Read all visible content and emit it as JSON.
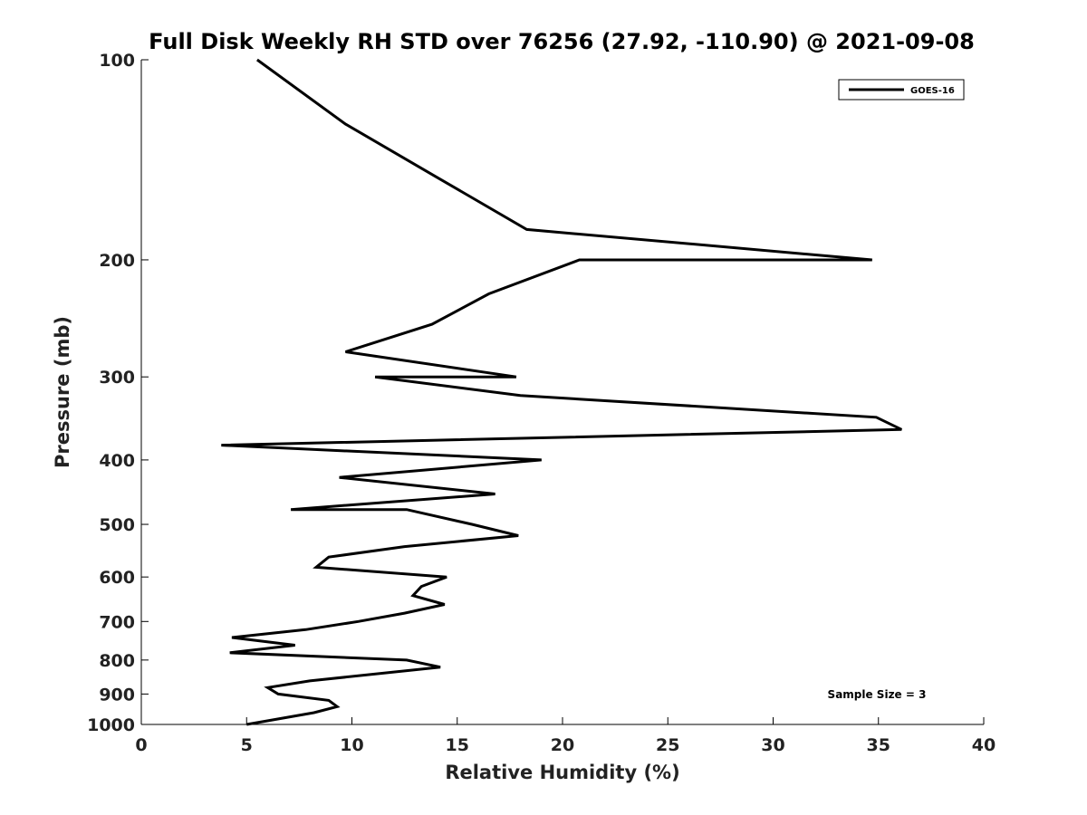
{
  "chart_data": {
    "type": "line",
    "title": "Full Disk Weekly RH STD over 76256 (27.92, -110.90) @ 2021-09-08",
    "xlabel": "Relative Humidity (%)",
    "ylabel": "Pressure (mb)",
    "xlim": [
      0,
      40
    ],
    "ylim": [
      100,
      1000
    ],
    "y_scale": "log",
    "y_reversed": true,
    "x_ticks": [
      "0",
      "5",
      "10",
      "15",
      "20",
      "25",
      "30",
      "35",
      "40"
    ],
    "y_ticks": [
      "100",
      "200",
      "300",
      "400",
      "500",
      "600",
      "700",
      "800",
      "900",
      "1000"
    ],
    "grid": false,
    "legend_position": "top-right",
    "series": [
      {
        "name": "GOES-16",
        "color": "#000000",
        "points": [
          [
            5.5,
            100
          ],
          [
            9.7,
            125
          ],
          [
            14.0,
            150
          ],
          [
            18.3,
            180
          ],
          [
            34.7,
            200
          ],
          [
            20.8,
            200
          ],
          [
            16.5,
            225
          ],
          [
            13.8,
            250
          ],
          [
            9.7,
            275
          ],
          [
            17.8,
            300
          ],
          [
            11.1,
            300
          ],
          [
            18.0,
            320
          ],
          [
            34.9,
            345
          ],
          [
            36.1,
            360
          ],
          [
            3.8,
            380
          ],
          [
            19.0,
            400
          ],
          [
            9.4,
            425
          ],
          [
            16.8,
            450
          ],
          [
            7.1,
            475
          ],
          [
            12.6,
            475
          ],
          [
            15.7,
            500
          ],
          [
            17.9,
            520
          ],
          [
            12.5,
            540
          ],
          [
            8.9,
            560
          ],
          [
            8.3,
            580
          ],
          [
            14.5,
            600
          ],
          [
            13.3,
            620
          ],
          [
            12.9,
            640
          ],
          [
            14.4,
            660
          ],
          [
            12.5,
            680
          ],
          [
            10.3,
            700
          ],
          [
            7.8,
            720
          ],
          [
            4.3,
            740
          ],
          [
            7.3,
            760
          ],
          [
            4.2,
            780
          ],
          [
            12.6,
            800
          ],
          [
            14.2,
            820
          ],
          [
            8.0,
            860
          ],
          [
            6.0,
            880
          ],
          [
            6.5,
            900
          ],
          [
            8.9,
            920
          ],
          [
            9.3,
            940
          ],
          [
            8.2,
            960
          ],
          [
            5.0,
            1000
          ]
        ]
      }
    ],
    "annotation": "Sample Size = 3"
  }
}
